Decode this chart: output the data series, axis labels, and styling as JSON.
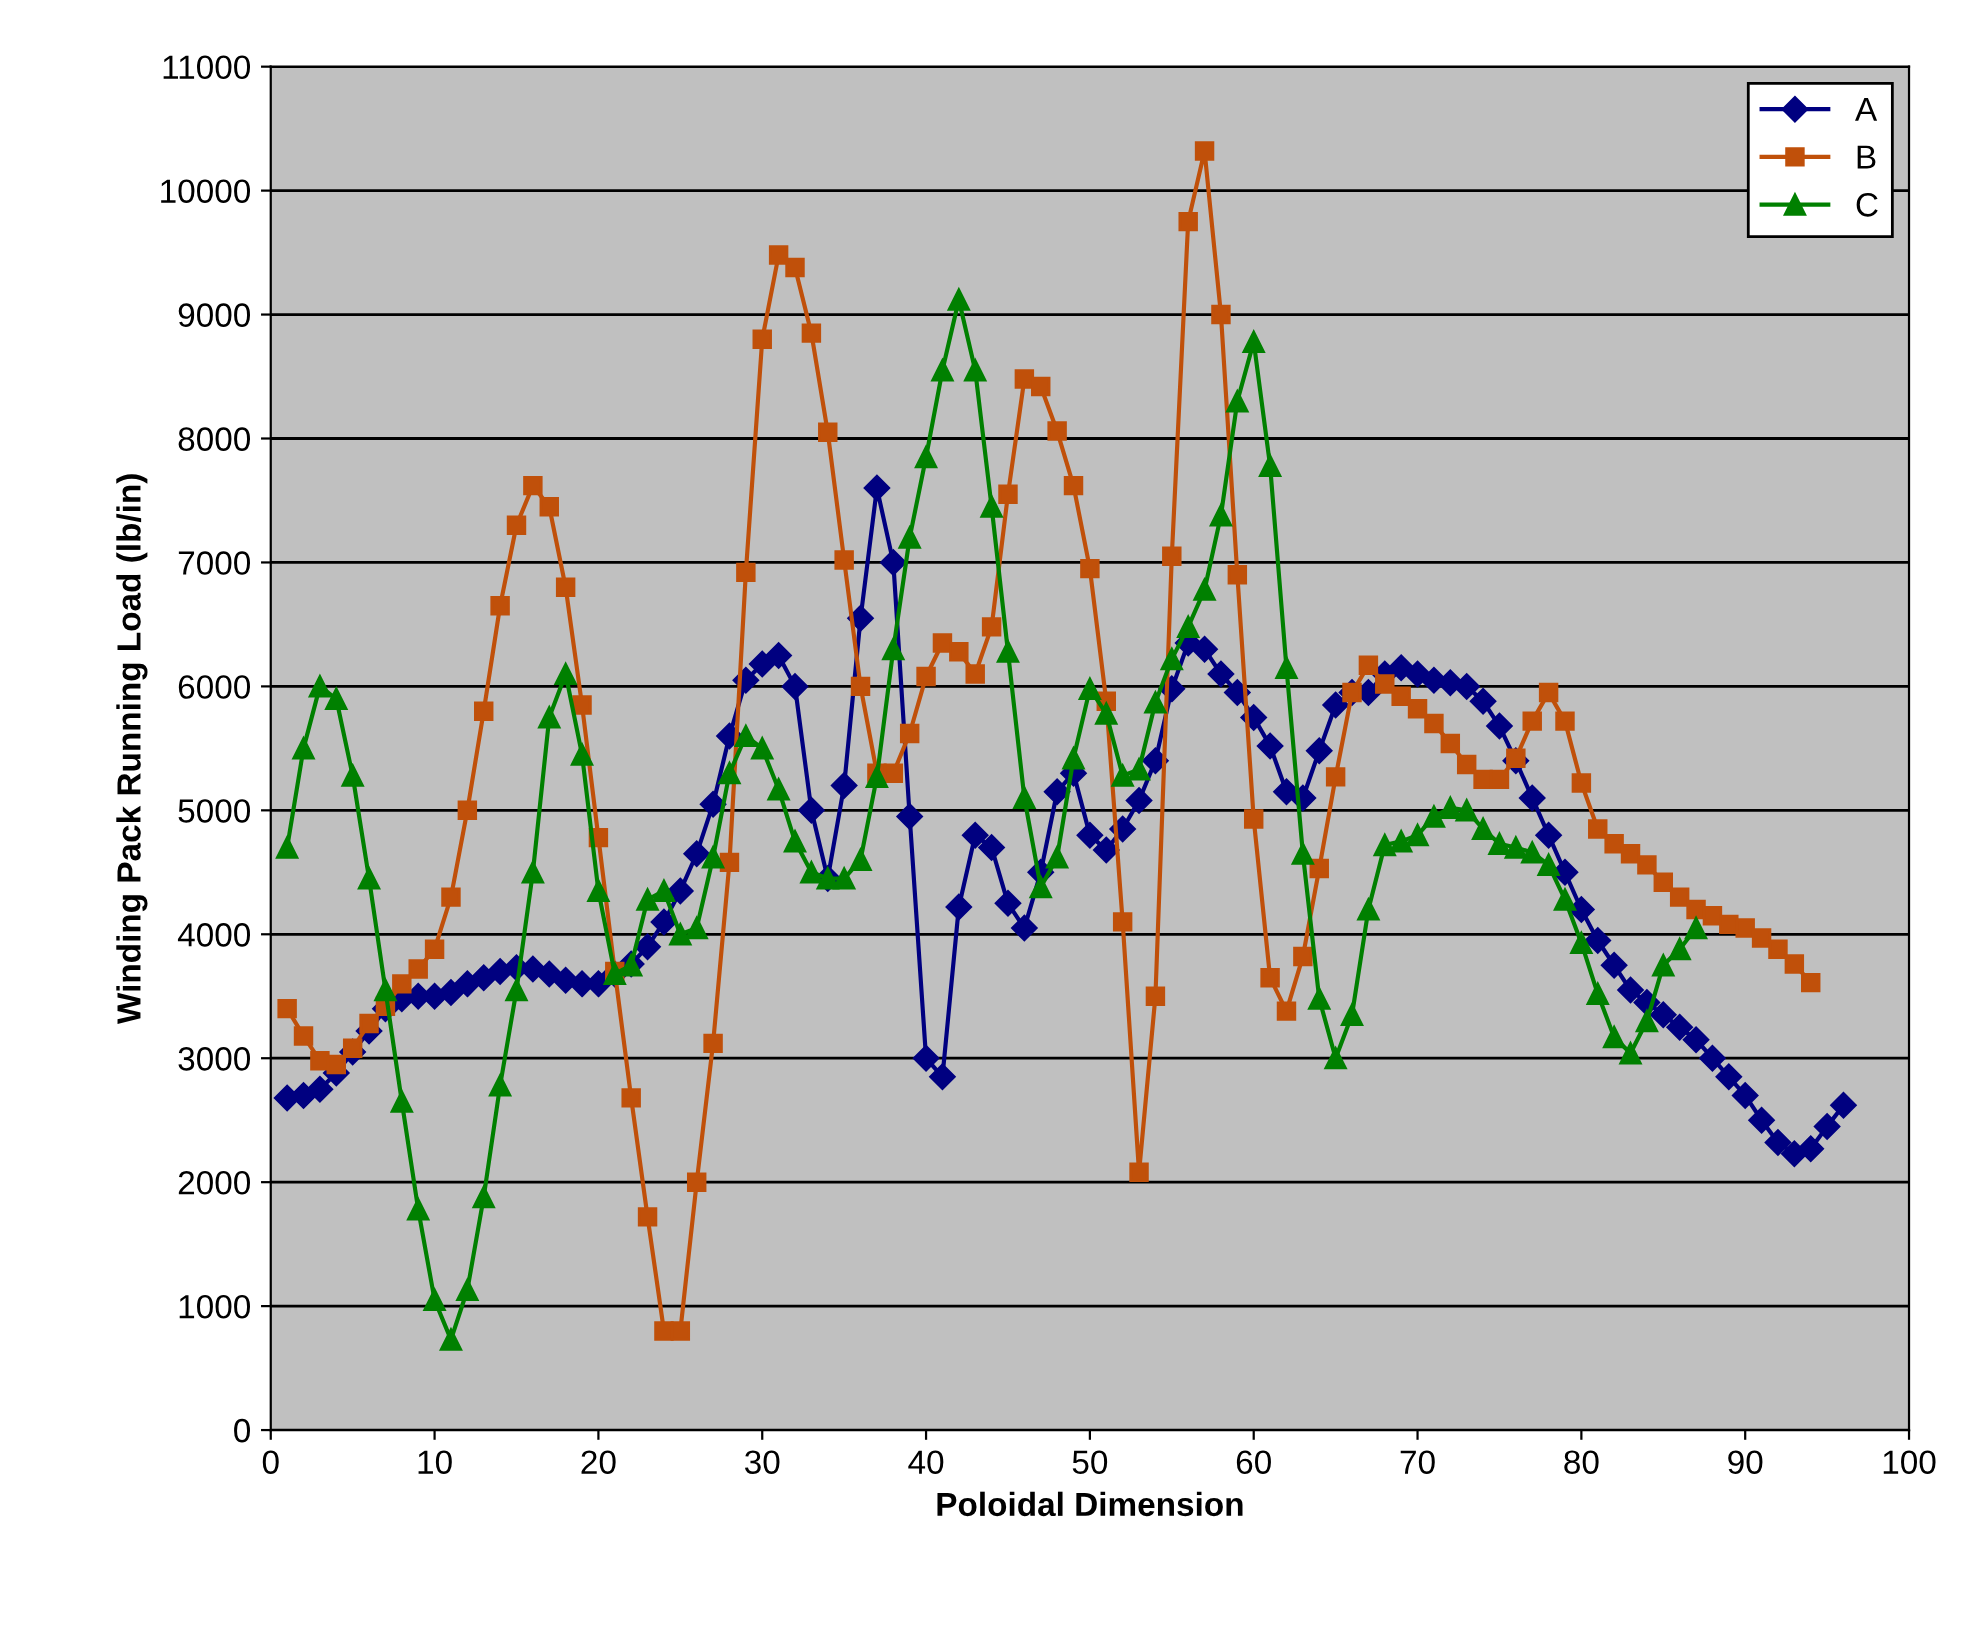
{
  "chart_data": {
    "type": "line",
    "xlabel": "Poloidal Dimension",
    "ylabel": "Winding Pack Running Load (lb/in)",
    "xlim": [
      0,
      100
    ],
    "xticks": [
      0,
      10,
      20,
      30,
      40,
      50,
      60,
      70,
      80,
      90,
      100
    ],
    "ylim": [
      0,
      11000
    ],
    "yticks": [
      0,
      1000,
      2000,
      3000,
      4000,
      5000,
      6000,
      7000,
      8000,
      9000,
      10000,
      11000
    ],
    "grid": "y",
    "legend": "top right",
    "line_style": "solid",
    "series": [
      {
        "name": "A",
        "color": "#000080",
        "marker": "diamond",
        "x": [
          1,
          2,
          3,
          4,
          5,
          6,
          7,
          8,
          9,
          10,
          11,
          12,
          13,
          14,
          15,
          16,
          17,
          18,
          19,
          20,
          21,
          22,
          23,
          24,
          25,
          26,
          27,
          28,
          29,
          30,
          31,
          32,
          33,
          34,
          35,
          36,
          37,
          38,
          39,
          40,
          41,
          42,
          43,
          44,
          45,
          46,
          47,
          48,
          49,
          50,
          51,
          52,
          53,
          54,
          55,
          56,
          57,
          58,
          59,
          60,
          61,
          62,
          63,
          64,
          65,
          66,
          67,
          68,
          69,
          70,
          71,
          72,
          73,
          74,
          75,
          76,
          77,
          78,
          79,
          80,
          81,
          82,
          83,
          84,
          85,
          86,
          87,
          88,
          89,
          90,
          91,
          92,
          93,
          94,
          95,
          96
        ],
        "values": [
          2680,
          2700,
          2750,
          2880,
          3050,
          3220,
          3400,
          3480,
          3500,
          3500,
          3530,
          3600,
          3650,
          3700,
          3730,
          3720,
          3680,
          3630,
          3600,
          3600,
          3680,
          3760,
          3900,
          4100,
          4350,
          4650,
          5050,
          5600,
          6050,
          6180,
          6250,
          6000,
          5000,
          4450,
          5200,
          6550,
          7600,
          7000,
          4950,
          3000,
          2850,
          4220,
          4800,
          4700,
          4250,
          4050,
          4500,
          5150,
          5300,
          4800,
          4680,
          4850,
          5080,
          5400,
          5980,
          6350,
          6300,
          6100,
          5950,
          5750,
          5520,
          5150,
          5100,
          5480,
          5850,
          5950,
          5950,
          6100,
          6150,
          6100,
          6050,
          6030,
          6000,
          5880,
          5680,
          5400,
          5100,
          4800,
          4500,
          4200,
          3950,
          3750,
          3550,
          3450,
          3350,
          3250,
          3150,
          3000,
          2850,
          2700,
          2500,
          2320,
          2230,
          2270,
          2450,
          2620
        ]
      },
      {
        "name": "B",
        "color": "#c0500a",
        "marker": "square",
        "x": [
          1,
          2,
          3,
          4,
          5,
          6,
          7,
          8,
          9,
          10,
          11,
          12,
          13,
          14,
          15,
          16,
          17,
          18,
          19,
          20,
          21,
          22,
          23,
          24,
          25,
          26,
          27,
          28,
          29,
          30,
          31,
          32,
          33,
          34,
          35,
          36,
          37,
          38,
          39,
          40,
          41,
          42,
          43,
          44,
          45,
          46,
          47,
          48,
          49,
          50,
          51,
          52,
          53,
          54,
          55,
          56,
          57,
          58,
          59,
          60,
          61,
          62,
          63,
          64,
          65,
          66,
          67,
          68,
          69,
          70,
          71,
          72,
          73,
          74,
          75,
          76,
          77,
          78,
          79,
          80,
          81,
          82,
          83,
          84,
          85,
          86,
          87,
          88,
          89,
          90,
          91,
          92,
          93,
          94
        ],
        "values": [
          3400,
          3180,
          2980,
          2950,
          3080,
          3280,
          3420,
          3600,
          3720,
          3880,
          4300,
          5000,
          5800,
          6650,
          7300,
          7620,
          7450,
          6800,
          5850,
          4780,
          3700,
          2680,
          1720,
          800,
          800,
          2000,
          3120,
          4580,
          6920,
          8800,
          9480,
          9380,
          8850,
          8050,
          7020,
          6000,
          5300,
          5300,
          5620,
          6080,
          6350,
          6280,
          6100,
          6480,
          7550,
          8480,
          8420,
          8060,
          7620,
          6950,
          5880,
          4100,
          2080,
          3500,
          7050,
          9750,
          10320,
          9000,
          6900,
          4930,
          3650,
          3380,
          3820,
          4530,
          5270,
          5950,
          6170,
          6020,
          5920,
          5820,
          5700,
          5540,
          5370,
          5250,
          5250,
          5420,
          5720,
          5950,
          5720,
          5220,
          4850,
          4730,
          4650,
          4560,
          4420,
          4300,
          4200,
          4150,
          4080,
          4050,
          3970,
          3880,
          3760,
          3610
        ]
      },
      {
        "name": "C",
        "color": "#008000",
        "marker": "triangle",
        "x": [
          1,
          2,
          3,
          4,
          5,
          6,
          7,
          8,
          9,
          10,
          11,
          12,
          13,
          14,
          15,
          16,
          17,
          18,
          19,
          20,
          21,
          22,
          23,
          24,
          25,
          26,
          27,
          28,
          29,
          30,
          31,
          32,
          33,
          34,
          35,
          36,
          37,
          38,
          39,
          40,
          41,
          42,
          43,
          44,
          45,
          46,
          47,
          48,
          49,
          50,
          51,
          52,
          53,
          54,
          55,
          56,
          57,
          58,
          59,
          60,
          61,
          62,
          63,
          64,
          65,
          66,
          67,
          68,
          69,
          70,
          71,
          72,
          73,
          74,
          75,
          76,
          77,
          78,
          79,
          80,
          81,
          82,
          83,
          84,
          85,
          86,
          87
        ],
        "values": [
          4700,
          5500,
          6000,
          5900,
          5280,
          4450,
          3550,
          2650,
          1780,
          1050,
          730,
          1130,
          1880,
          2780,
          3550,
          4500,
          5750,
          6100,
          5450,
          4350,
          3680,
          3750,
          4280,
          4350,
          4000,
          4050,
          4620,
          5300,
          5600,
          5500,
          5170,
          4750,
          4500,
          4450,
          4450,
          4600,
          5270,
          6300,
          7200,
          7850,
          8550,
          9120,
          8550,
          7450,
          6280,
          5100,
          4380,
          4620,
          5420,
          5980,
          5780,
          5280,
          5330,
          5870,
          6220,
          6480,
          6780,
          7380,
          8300,
          8780,
          7780,
          6150,
          4650,
          3480,
          3000,
          3350,
          4200,
          4720,
          4750,
          4800,
          4950,
          5020,
          5000,
          4850,
          4730,
          4700,
          4660,
          4560,
          4280,
          3930,
          3520,
          3170,
          3040,
          3300,
          3750,
          3880,
          4050
        ]
      }
    ]
  }
}
